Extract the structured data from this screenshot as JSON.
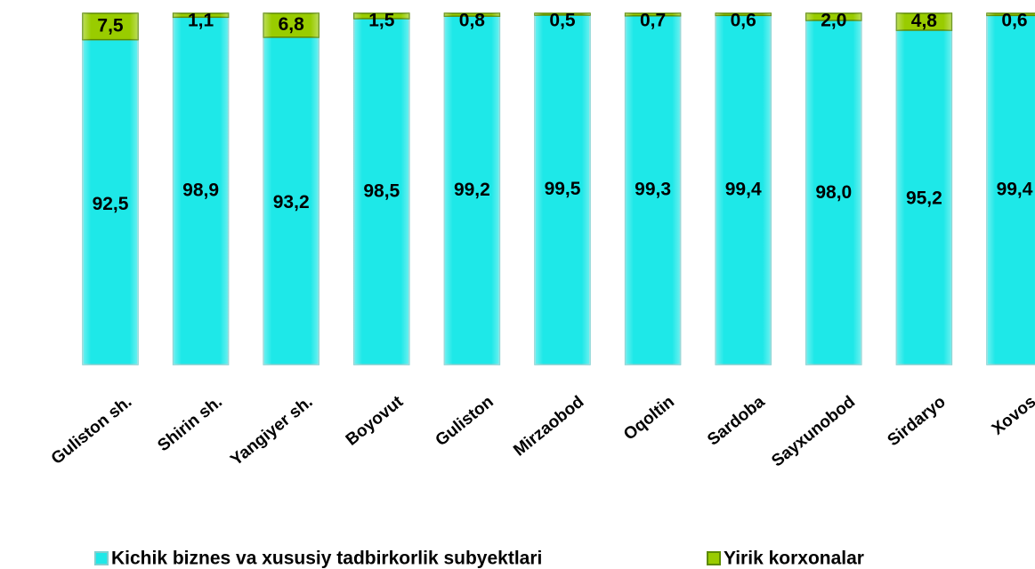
{
  "chart_data": {
    "type": "stacked-bar",
    "categories": [
      "Guliston sh.",
      "Shirin sh.",
      "Yangiyer sh.",
      "Boyovut",
      "Guliston",
      "Mirzaobod",
      "Oqoltin",
      "Sardoba",
      "Sayxunobod",
      "Sirdaryo",
      "Xovos"
    ],
    "series": [
      {
        "name": "Kichik biznes va xususiy tadbirkorlik subyektlari",
        "color": "#1ee8e8",
        "values": [
          92.5,
          98.9,
          93.2,
          98.5,
          99.2,
          99.5,
          99.3,
          99.4,
          98.0,
          95.2,
          99.4
        ],
        "value_labels": [
          "92,5",
          "98,9",
          "93,2",
          "98,5",
          "99,2",
          "99,5",
          "99,3",
          "99,4",
          "98,0",
          "95,2",
          "99,4"
        ]
      },
      {
        "name": "Yirik korxonalar",
        "color": "#99cc00",
        "values": [
          7.5,
          1.1,
          6.8,
          1.5,
          0.8,
          0.5,
          0.7,
          0.6,
          2.0,
          4.8,
          0.6
        ],
        "value_labels": [
          "7,5",
          "1,1",
          "6,8",
          "1,5",
          "0,8",
          "0,5",
          "0,7",
          "0,6",
          "2,0",
          "4,8",
          "0,6"
        ]
      }
    ],
    "ylim": [
      0,
      100
    ]
  }
}
